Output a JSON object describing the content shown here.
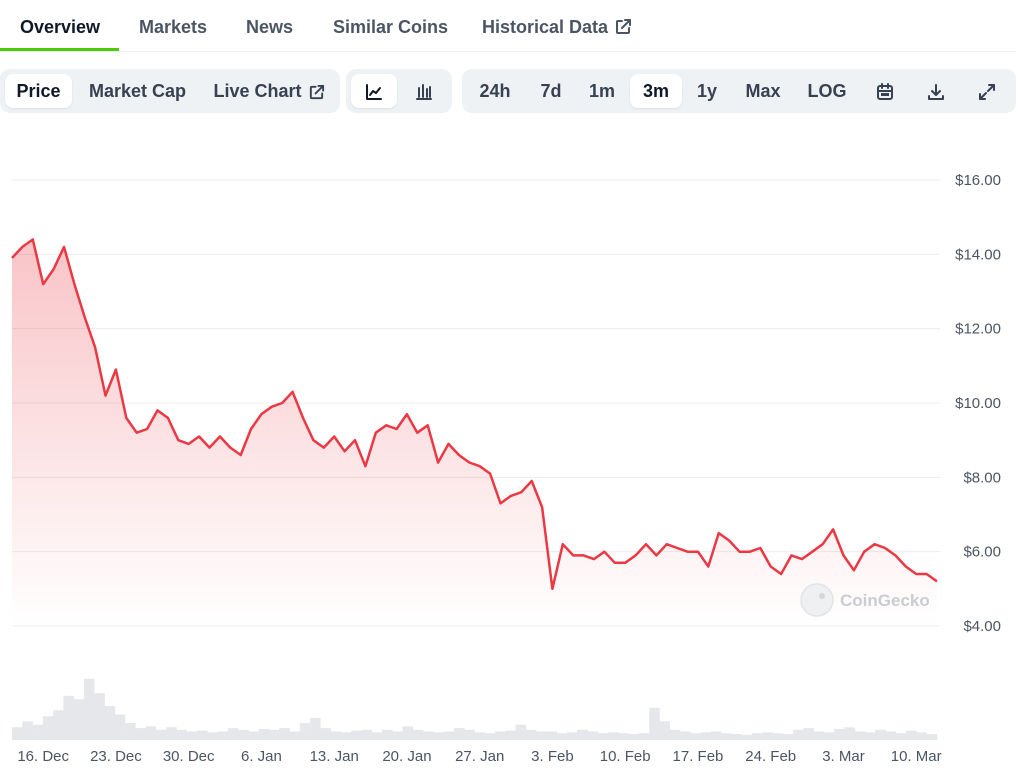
{
  "tabs": [
    {
      "label": "Overview",
      "active": true
    },
    {
      "label": "Markets",
      "active": false
    },
    {
      "label": "News",
      "active": false
    },
    {
      "label": "Similar Coins",
      "active": false
    },
    {
      "label": "Historical Data",
      "active": false,
      "icon": "external-link-icon"
    }
  ],
  "toolbar": {
    "metric_buttons": [
      {
        "label": "Price",
        "active": true
      },
      {
        "label": "Market Cap",
        "active": false
      },
      {
        "label": "Live Chart",
        "active": false,
        "icon": "external-link-icon"
      }
    ],
    "chart_style_buttons": [
      {
        "icon": "line-chart-icon",
        "active": true
      },
      {
        "icon": "candlestick-chart-icon",
        "active": false
      }
    ],
    "range_buttons": [
      {
        "label": "24h",
        "active": false
      },
      {
        "label": "7d",
        "active": false
      },
      {
        "label": "1m",
        "active": false
      },
      {
        "label": "3m",
        "active": true
      },
      {
        "label": "1y",
        "active": false
      },
      {
        "label": "Max",
        "active": false
      },
      {
        "label": "LOG",
        "active": false
      }
    ],
    "tool_icons": [
      "calendar-icon",
      "download-icon",
      "expand-icon"
    ]
  },
  "watermark": "CoinGecko",
  "colors": {
    "accent": "#4bcc00",
    "line": "#ea3943",
    "volume": "#e5e7eb",
    "grid": "#eaecef"
  },
  "chart_data": {
    "type": "area",
    "x_range": [
      "2024-12-13",
      "2025-03-12"
    ],
    "y_range": [
      4,
      16
    ],
    "y_ticks": [
      "$16.00",
      "$14.00",
      "$12.00",
      "$10.00",
      "$8.00",
      "$6.00",
      "$4.00"
    ],
    "y_tick_values": [
      16,
      14,
      12,
      10,
      8,
      6,
      4
    ],
    "x_ticks": [
      "16. Dec",
      "23. Dec",
      "30. Dec",
      "6. Jan",
      "13. Jan",
      "20. Jan",
      "27. Jan",
      "3. Feb",
      "10. Feb",
      "17. Feb",
      "24. Feb",
      "3. Mar",
      "10. Mar"
    ],
    "x_tick_dates": [
      "2024-12-16",
      "2024-12-23",
      "2024-12-30",
      "2025-01-06",
      "2025-01-13",
      "2025-01-20",
      "2025-01-27",
      "2025-02-03",
      "2025-02-10",
      "2025-02-17",
      "2025-02-24",
      "2025-03-03",
      "2025-03-10"
    ],
    "grid": true,
    "series": [
      {
        "values": [
          [
            "2024-12-13",
            13.9
          ],
          [
            "2024-12-14",
            14.2
          ],
          [
            "2024-12-15",
            14.4
          ],
          [
            "2024-12-16",
            13.2
          ],
          [
            "2024-12-17",
            13.6
          ],
          [
            "2024-12-18",
            14.2
          ],
          [
            "2024-12-19",
            13.2
          ],
          [
            "2024-12-20",
            12.3
          ],
          [
            "2024-12-21",
            11.5
          ],
          [
            "2024-12-22",
            10.2
          ],
          [
            "2024-12-23",
            10.9
          ],
          [
            "2024-12-24",
            9.6
          ],
          [
            "2024-12-25",
            9.2
          ],
          [
            "2024-12-26",
            9.3
          ],
          [
            "2024-12-27",
            9.8
          ],
          [
            "2024-12-28",
            9.6
          ],
          [
            "2024-12-29",
            9.0
          ],
          [
            "2024-12-30",
            8.9
          ],
          [
            "2024-12-31",
            9.1
          ],
          [
            "2025-01-01",
            8.8
          ],
          [
            "2025-01-02",
            9.1
          ],
          [
            "2025-01-03",
            8.8
          ],
          [
            "2025-01-04",
            8.6
          ],
          [
            "2025-01-05",
            9.3
          ],
          [
            "2025-01-06",
            9.7
          ],
          [
            "2025-01-07",
            9.9
          ],
          [
            "2025-01-08",
            10.0
          ],
          [
            "2025-01-09",
            10.3
          ],
          [
            "2025-01-10",
            9.6
          ],
          [
            "2025-01-11",
            9.0
          ],
          [
            "2025-01-12",
            8.8
          ],
          [
            "2025-01-13",
            9.1
          ],
          [
            "2025-01-14",
            8.7
          ],
          [
            "2025-01-15",
            9.0
          ],
          [
            "2025-01-16",
            8.3
          ],
          [
            "2025-01-17",
            9.2
          ],
          [
            "2025-01-18",
            9.4
          ],
          [
            "2025-01-19",
            9.3
          ],
          [
            "2025-01-20",
            9.7
          ],
          [
            "2025-01-21",
            9.2
          ],
          [
            "2025-01-22",
            9.4
          ],
          [
            "2025-01-23",
            8.4
          ],
          [
            "2025-01-24",
            8.9
          ],
          [
            "2025-01-25",
            8.6
          ],
          [
            "2025-01-26",
            8.4
          ],
          [
            "2025-01-27",
            8.3
          ],
          [
            "2025-01-28",
            8.1
          ],
          [
            "2025-01-29",
            7.3
          ],
          [
            "2025-01-30",
            7.5
          ],
          [
            "2025-01-31",
            7.6
          ],
          [
            "2025-02-01",
            7.9
          ],
          [
            "2025-02-02",
            7.2
          ],
          [
            "2025-02-03",
            5.0
          ],
          [
            "2025-02-04",
            6.2
          ],
          [
            "2025-02-05",
            5.9
          ],
          [
            "2025-02-06",
            5.9
          ],
          [
            "2025-02-07",
            5.8
          ],
          [
            "2025-02-08",
            6.0
          ],
          [
            "2025-02-09",
            5.7
          ],
          [
            "2025-02-10",
            5.7
          ],
          [
            "2025-02-11",
            5.9
          ],
          [
            "2025-02-12",
            6.2
          ],
          [
            "2025-02-13",
            5.9
          ],
          [
            "2025-02-14",
            6.2
          ],
          [
            "2025-02-15",
            6.1
          ],
          [
            "2025-02-16",
            6.0
          ],
          [
            "2025-02-17",
            6.0
          ],
          [
            "2025-02-18",
            5.6
          ],
          [
            "2025-02-19",
            6.5
          ],
          [
            "2025-02-20",
            6.3
          ],
          [
            "2025-02-21",
            6.0
          ],
          [
            "2025-02-22",
            6.0
          ],
          [
            "2025-02-23",
            6.1
          ],
          [
            "2025-02-24",
            5.6
          ],
          [
            "2025-02-25",
            5.4
          ],
          [
            "2025-02-26",
            5.9
          ],
          [
            "2025-02-27",
            5.8
          ],
          [
            "2025-02-28",
            6.0
          ],
          [
            "2025-03-01",
            6.2
          ],
          [
            "2025-03-02",
            6.6
          ],
          [
            "2025-03-03",
            5.9
          ],
          [
            "2025-03-04",
            5.5
          ],
          [
            "2025-03-05",
            6.0
          ],
          [
            "2025-03-06",
            6.2
          ],
          [
            "2025-03-07",
            6.1
          ],
          [
            "2025-03-08",
            5.9
          ],
          [
            "2025-03-09",
            5.6
          ],
          [
            "2025-03-10",
            5.4
          ],
          [
            "2025-03-11",
            5.4
          ],
          [
            "2025-03-12",
            5.2
          ]
        ]
      }
    ],
    "volume": [
      0.15,
      0.22,
      0.18,
      0.28,
      0.35,
      0.52,
      0.48,
      0.72,
      0.55,
      0.4,
      0.3,
      0.2,
      0.14,
      0.16,
      0.12,
      0.15,
      0.12,
      0.1,
      0.11,
      0.09,
      0.1,
      0.14,
      0.12,
      0.1,
      0.13,
      0.12,
      0.14,
      0.1,
      0.2,
      0.26,
      0.14,
      0.1,
      0.09,
      0.11,
      0.12,
      0.09,
      0.12,
      0.1,
      0.16,
      0.12,
      0.1,
      0.09,
      0.1,
      0.14,
      0.12,
      0.09,
      0.08,
      0.1,
      0.11,
      0.18,
      0.12,
      0.1,
      0.1,
      0.08,
      0.09,
      0.12,
      0.1,
      0.08,
      0.09,
      0.08,
      0.07,
      0.08,
      0.38,
      0.22,
      0.12,
      0.1,
      0.08,
      0.09,
      0.1,
      0.08,
      0.07,
      0.06,
      0.08,
      0.09,
      0.08,
      0.07,
      0.12,
      0.14,
      0.1,
      0.09,
      0.13,
      0.15,
      0.1,
      0.09,
      0.12,
      0.1,
      0.08,
      0.11,
      0.09,
      0.07
    ]
  }
}
